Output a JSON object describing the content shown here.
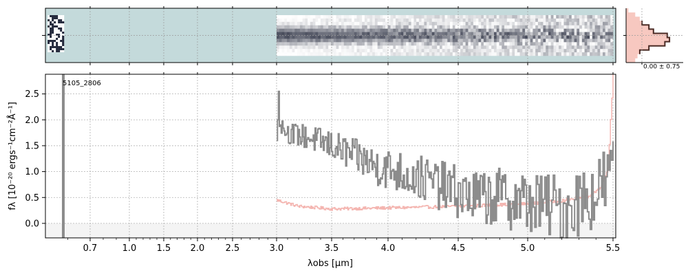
{
  "chart_data": [
    {
      "type": "heatmap",
      "panel": "2d-spectrum",
      "background_color": "#c4dadb",
      "colormap": "bone_r",
      "x_range_um": [
        0.5,
        5.52
      ],
      "data_regions_um": [
        [
          0.51,
          0.58
        ],
        [
          3.0,
          5.5
        ]
      ],
      "trace_center_fraction": 0.5
    },
    {
      "type": "line",
      "panel": "spatial-profile",
      "fill_color": "#f7c8c0",
      "line_color": "#4a2a24",
      "x_tick_label": "0.00 ± 0.75",
      "profile": [
        0.05,
        0.2,
        0.3,
        0.35,
        0.5,
        0.6,
        0.9,
        0.95,
        0.85,
        0.5,
        0.3,
        0.25,
        0.2
      ]
    },
    {
      "type": "line",
      "panel": "1d-spectrum",
      "label": "5105_2806",
      "xlabel": "λobs [μm]",
      "ylabel": "fλ [10⁻²⁰ ergs⁻¹cm⁻²Å⁻¹]",
      "xlim": [
        0.5,
        5.52
      ],
      "ylim": [
        -0.28,
        2.88
      ],
      "x_scale": "spectral",
      "xticks": [
        0.7,
        1.0,
        1.5,
        2.0,
        2.5,
        3.0,
        3.5,
        4.0,
        4.5,
        5.0,
        5.5
      ],
      "xtick_labels": [
        "0.7",
        "1.0",
        "1.5",
        "2.0",
        "2.5",
        "3.0",
        "3.5",
        "4.0",
        "4.5",
        "5.0",
        "5.5"
      ],
      "yticks": [
        0.0,
        0.5,
        1.0,
        1.5,
        2.0,
        2.5
      ],
      "ytick_labels": [
        "0.0",
        "0.5",
        "1.0",
        "1.5",
        "2.0",
        "2.5"
      ],
      "grid": true,
      "flux_color": "#8c8c8c",
      "error_color": "#f4b5b0",
      "isolated_point": {
        "x": 0.58,
        "y": 2.88
      },
      "flux_anchors": [
        [
          3.0,
          2.0
        ],
        [
          3.1,
          1.75
        ],
        [
          3.3,
          1.65
        ],
        [
          3.5,
          1.5
        ],
        [
          3.7,
          1.3
        ],
        [
          3.9,
          1.1
        ],
        [
          4.0,
          1.05
        ],
        [
          4.2,
          0.9
        ],
        [
          4.4,
          0.7
        ],
        [
          4.6,
          0.5
        ],
        [
          4.8,
          0.5
        ],
        [
          5.0,
          0.4
        ],
        [
          5.2,
          0.3
        ],
        [
          5.4,
          0.6
        ],
        [
          5.5,
          1.0
        ]
      ],
      "error_anchors": [
        [
          3.0,
          0.45
        ],
        [
          3.2,
          0.33
        ],
        [
          3.5,
          0.28
        ],
        [
          3.8,
          0.29
        ],
        [
          4.2,
          0.31
        ],
        [
          4.5,
          0.33
        ],
        [
          4.8,
          0.36
        ],
        [
          5.0,
          0.38
        ],
        [
          5.2,
          0.44
        ],
        [
          5.35,
          0.52
        ],
        [
          5.43,
          0.7
        ],
        [
          5.47,
          1.1
        ],
        [
          5.5,
          2.88
        ]
      ]
    }
  ]
}
